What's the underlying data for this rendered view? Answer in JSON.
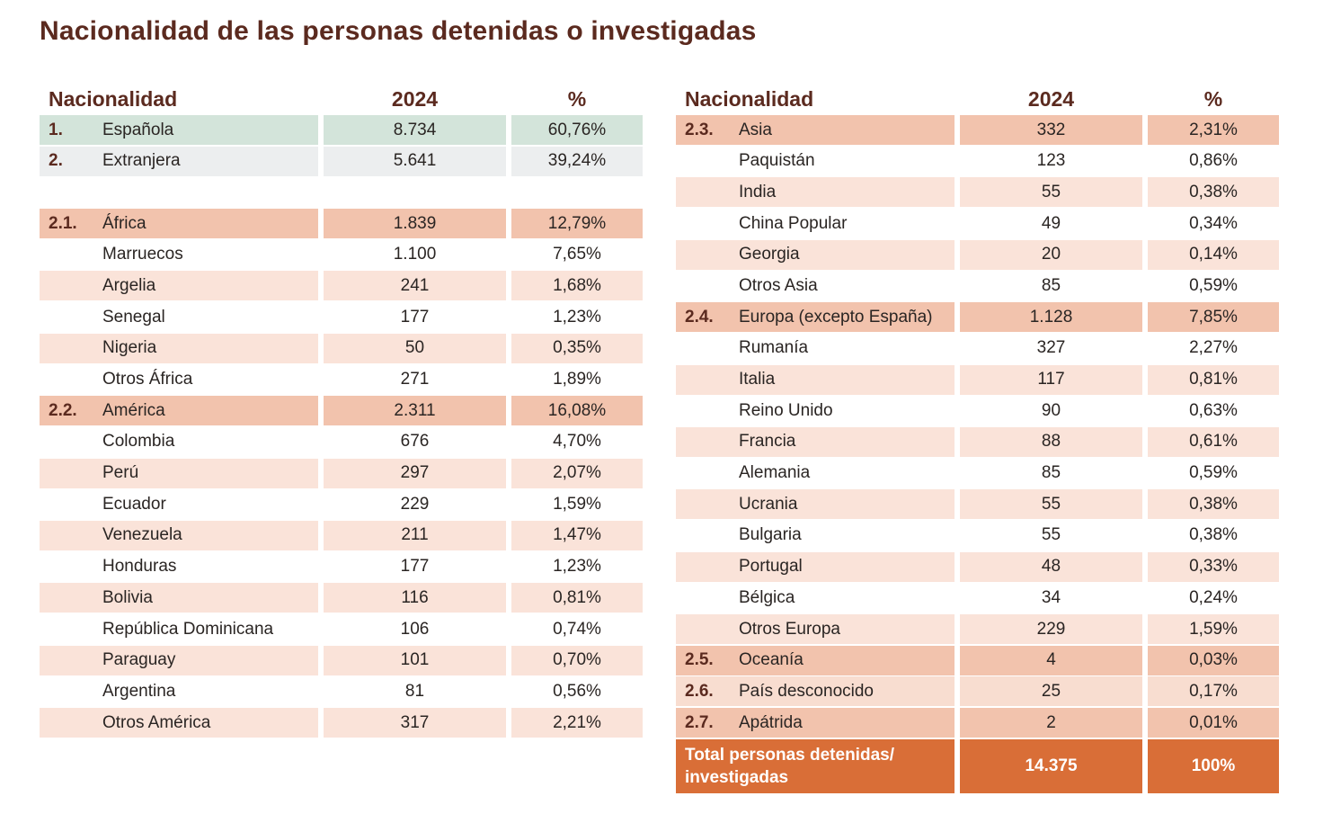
{
  "title": "Nacionalidad de las personas detenidas o investigadas",
  "headers": {
    "name": "Nacionalidad",
    "year": "2024",
    "pct": "%"
  },
  "colors": {
    "title": "#5b2a1f",
    "green": "#d3e4da",
    "gray": "#eceeef",
    "region": "#f2c3ad",
    "alt": "#fae3d9",
    "total": "#d96e37"
  },
  "left_table": [
    {
      "style": "green",
      "num": "1.",
      "name": "Española",
      "value": "8.734",
      "pct": "60,76%"
    },
    {
      "style": "gray",
      "num": "2.",
      "name": "Extranjera",
      "value": "5.641",
      "pct": "39,24%"
    },
    {
      "style": "blank"
    },
    {
      "style": "hdr",
      "num": "2.1.",
      "name": "África",
      "value": "1.839",
      "pct": "12,79%"
    },
    {
      "style": "plain",
      "name": "Marruecos",
      "value": "1.100",
      "pct": "7,65%"
    },
    {
      "style": "alt",
      "name": "Argelia",
      "value": "241",
      "pct": "1,68%"
    },
    {
      "style": "plain",
      "name": "Senegal",
      "value": "177",
      "pct": "1,23%"
    },
    {
      "style": "alt",
      "name": "Nigeria",
      "value": "50",
      "pct": "0,35%"
    },
    {
      "style": "plain",
      "name": "Otros África",
      "value": "271",
      "pct": "1,89%"
    },
    {
      "style": "hdr",
      "num": "2.2.",
      "name": "América",
      "value": "2.311",
      "pct": "16,08%"
    },
    {
      "style": "plain",
      "name": "Colombia",
      "value": "676",
      "pct": "4,70%"
    },
    {
      "style": "alt",
      "name": "Perú",
      "value": "297",
      "pct": "2,07%"
    },
    {
      "style": "plain",
      "name": "Ecuador",
      "value": "229",
      "pct": "1,59%"
    },
    {
      "style": "alt",
      "name": "Venezuela",
      "value": "211",
      "pct": "1,47%"
    },
    {
      "style": "plain",
      "name": "Honduras",
      "value": "177",
      "pct": "1,23%"
    },
    {
      "style": "alt",
      "name": "Bolivia",
      "value": "116",
      "pct": "0,81%"
    },
    {
      "style": "plain",
      "name": "República Dominicana",
      "value": "106",
      "pct": "0,74%"
    },
    {
      "style": "alt",
      "name": "Paraguay",
      "value": "101",
      "pct": "0,70%"
    },
    {
      "style": "plain",
      "name": "Argentina",
      "value": "81",
      "pct": "0,56%"
    },
    {
      "style": "alt",
      "name": "Otros América",
      "value": "317",
      "pct": "2,21%"
    }
  ],
  "right_table": [
    {
      "style": "hdr",
      "num": "2.3.",
      "name": "Asia",
      "value": "332",
      "pct": "2,31%"
    },
    {
      "style": "plain",
      "name": "Paquistán",
      "value": "123",
      "pct": "0,86%"
    },
    {
      "style": "alt",
      "name": "India",
      "value": "55",
      "pct": "0,38%"
    },
    {
      "style": "plain",
      "name": "China Popular",
      "value": "49",
      "pct": "0,34%"
    },
    {
      "style": "alt",
      "name": "Georgia",
      "value": "20",
      "pct": "0,14%"
    },
    {
      "style": "plain",
      "name": "Otros Asia",
      "value": "85",
      "pct": "0,59%"
    },
    {
      "style": "hdr",
      "num": "2.4.",
      "name": "Europa (excepto España)",
      "value": "1.128",
      "pct": "7,85%"
    },
    {
      "style": "plain",
      "name": "Rumanía",
      "value": "327",
      "pct": "2,27%"
    },
    {
      "style": "alt",
      "name": "Italia",
      "value": "117",
      "pct": "0,81%"
    },
    {
      "style": "plain",
      "name": "Reino Unido",
      "value": "90",
      "pct": "0,63%"
    },
    {
      "style": "alt",
      "name": "Francia",
      "value": "88",
      "pct": "0,61%"
    },
    {
      "style": "plain",
      "name": "Alemania",
      "value": "85",
      "pct": "0,59%"
    },
    {
      "style": "alt",
      "name": "Ucrania",
      "value": "55",
      "pct": "0,38%"
    },
    {
      "style": "plain",
      "name": "Bulgaria",
      "value": "55",
      "pct": "0,38%"
    },
    {
      "style": "alt",
      "name": "Portugal",
      "value": "48",
      "pct": "0,33%"
    },
    {
      "style": "plain",
      "name": "Bélgica",
      "value": "34",
      "pct": "0,24%"
    },
    {
      "style": "alt",
      "name": "Otros Europa",
      "value": "229",
      "pct": "1,59%"
    },
    {
      "style": "hdr",
      "num": "2.5.",
      "name": "Oceanía",
      "value": "4",
      "pct": "0,03%"
    },
    {
      "style": "alt2",
      "num": "2.6.",
      "name": "País desconocido",
      "value": "25",
      "pct": "0,17%"
    },
    {
      "style": "hdr",
      "num": "2.7.",
      "name": "Apátrida",
      "value": "2",
      "pct": "0,01%"
    },
    {
      "style": "total",
      "name": "Total personas detenidas/ investigadas",
      "value": "14.375",
      "pct": "100%"
    }
  ]
}
